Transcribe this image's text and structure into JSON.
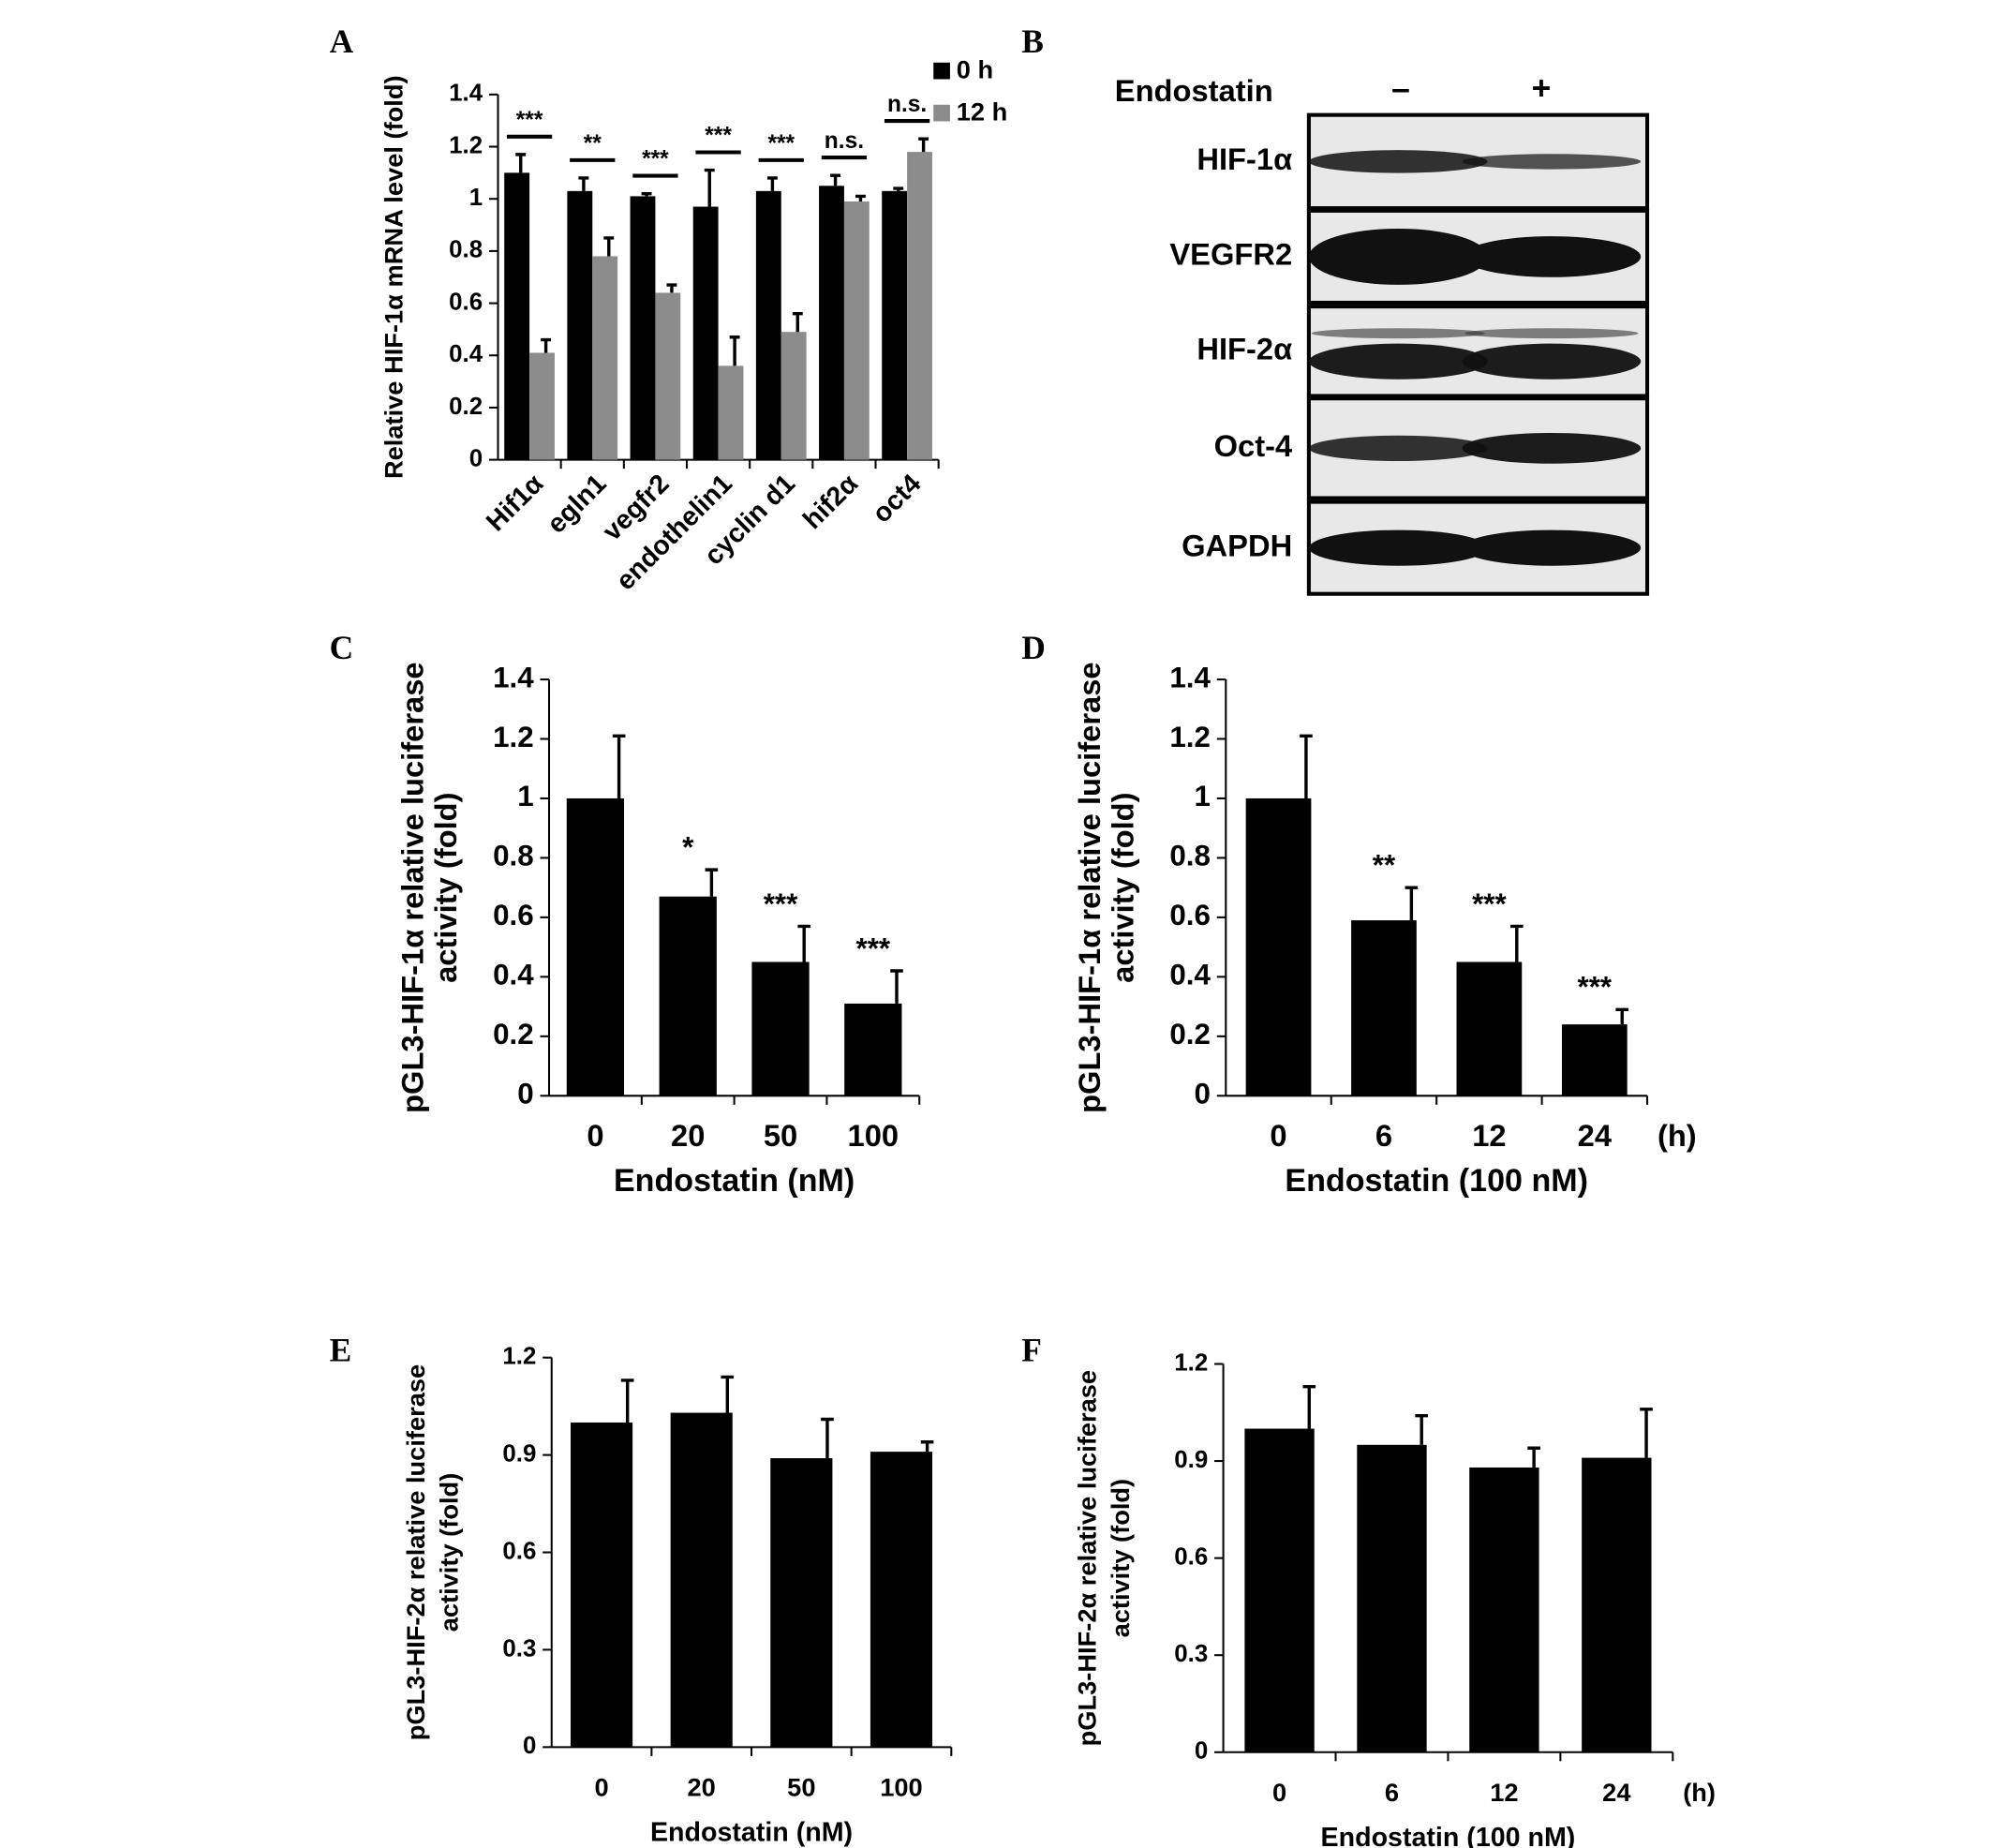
{
  "chart_data": [
    {
      "type": "grouped-bar",
      "panel_label": "A",
      "y_label": [
        "Relative HIF-1α mRNA level (fold)"
      ],
      "categories": [
        "Hif1α",
        "egln1",
        "vegfr2",
        "endothelin1",
        "cyclin d1",
        "hif2α",
        "oct4"
      ],
      "series": [
        {
          "name": "0 h",
          "color": "#000000",
          "values": [
            1.1,
            1.03,
            1.01,
            0.97,
            1.03,
            1.05,
            1.03
          ],
          "errors": [
            0.07,
            0.05,
            0.01,
            0.14,
            0.05,
            0.04,
            0.01
          ]
        },
        {
          "name": "12 h",
          "color": "#8c8c8c",
          "values": [
            0.41,
            0.78,
            0.64,
            0.36,
            0.49,
            0.99,
            1.18
          ],
          "errors": [
            0.05,
            0.07,
            0.03,
            0.11,
            0.07,
            0.02,
            0.05
          ]
        }
      ],
      "significance": [
        "***",
        "**",
        "***",
        "***",
        "***",
        "n.s.",
        "n.s."
      ],
      "ylim": [
        0,
        1.4
      ],
      "yticks": [
        0,
        0.2,
        0.4,
        0.6,
        0.8,
        1,
        1.2,
        1.4
      ]
    },
    {
      "type": "bar",
      "panel_label": "C",
      "y_label": [
        "pGL3-HIF-1α relative luciferase",
        "activity (fold)"
      ],
      "x_label": "Endostatin (nM)",
      "categories": [
        "0",
        "20",
        "50",
        "100"
      ],
      "values": [
        1,
        0.67,
        0.45,
        0.31
      ],
      "errors": [
        0.21,
        0.09,
        0.12,
        0.11
      ],
      "annotations": [
        null,
        "*",
        "***",
        "***"
      ],
      "color": "#000000",
      "ylim": [
        0,
        1.4
      ],
      "yticks": [
        0,
        0.2,
        0.4,
        0.6,
        0.8,
        1,
        1.2,
        1.4
      ]
    },
    {
      "type": "bar",
      "panel_label": "D",
      "y_label": [
        "pGL3-HIF-1α relative luciferase",
        "activity (fold)"
      ],
      "x_label": "Endostatin (100 nM)",
      "x_unit": "(h)",
      "categories": [
        "0",
        "6",
        "12",
        "24"
      ],
      "values": [
        1,
        0.59,
        0.45,
        0.24
      ],
      "errors": [
        0.21,
        0.11,
        0.12,
        0.05
      ],
      "annotations": [
        null,
        "**",
        "***",
        "***"
      ],
      "color": "#000000",
      "ylim": [
        0,
        1.4
      ],
      "yticks": [
        0,
        0.2,
        0.4,
        0.6,
        0.8,
        1,
        1.2,
        1.4
      ]
    },
    {
      "type": "bar",
      "panel_label": "E",
      "y_label": [
        "pGL3-HIF-2α relative luciferase",
        "activity (fold)"
      ],
      "x_label": "Endostatin (nM)",
      "categories": [
        "0",
        "20",
        "50",
        "100"
      ],
      "values": [
        1.0,
        1.03,
        0.89,
        0.91
      ],
      "errors": [
        0.13,
        0.11,
        0.12,
        0.03
      ],
      "color": "#000000",
      "ylim": [
        0,
        1.2
      ],
      "yticks": [
        0,
        0.3,
        0.6,
        0.9,
        1.2
      ]
    },
    {
      "type": "bar",
      "panel_label": "F",
      "y_label": [
        "pGL3-HIF-2α relative luciferase",
        "activity (fold)"
      ],
      "x_label": "Endostatin (100 nM)",
      "x_unit": "(h)",
      "categories": [
        "0",
        "6",
        "12",
        "24"
      ],
      "values": [
        1.0,
        0.95,
        0.88,
        0.91
      ],
      "errors": [
        0.13,
        0.09,
        0.06,
        0.15
      ],
      "color": "#000000",
      "ylim": [
        0,
        1.2
      ],
      "yticks": [
        0,
        0.3,
        0.6,
        0.9,
        1.2
      ]
    }
  ],
  "blot": {
    "panel_label": "B",
    "treatment": "Endostatin",
    "lanes": [
      "–",
      "+"
    ],
    "rows": [
      "HIF-1α",
      "VEGFR2",
      "HIF-2α",
      "Oct-4",
      "GAPDH"
    ]
  }
}
